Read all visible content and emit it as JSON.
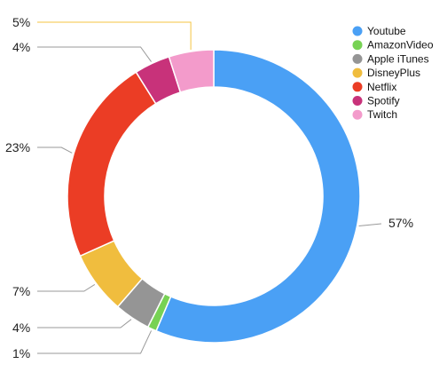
{
  "chart_data": {
    "type": "pie",
    "variant": "donut",
    "title": "",
    "legend_position": "top-right",
    "series": [
      {
        "name": "Youtube",
        "value": 57,
        "label": "57%",
        "color": "#4aa0f5"
      },
      {
        "name": "AmazonVideo",
        "value": 1,
        "label": "1%",
        "color": "#77d254"
      },
      {
        "name": "Apple iTunes",
        "value": 4,
        "label": "4%",
        "color": "#959595"
      },
      {
        "name": "DisneyPlus",
        "value": 7,
        "label": "7%",
        "color": "#f0bd3e"
      },
      {
        "name": "Netflix",
        "value": 23,
        "label": "23%",
        "color": "#eb3d25"
      },
      {
        "name": "Spotify",
        "value": 4,
        "label": "4%",
        "color": "#c8327a"
      },
      {
        "name": "Twitch",
        "value": 5,
        "label": "5%",
        "color": "#f39bcb"
      }
    ]
  }
}
